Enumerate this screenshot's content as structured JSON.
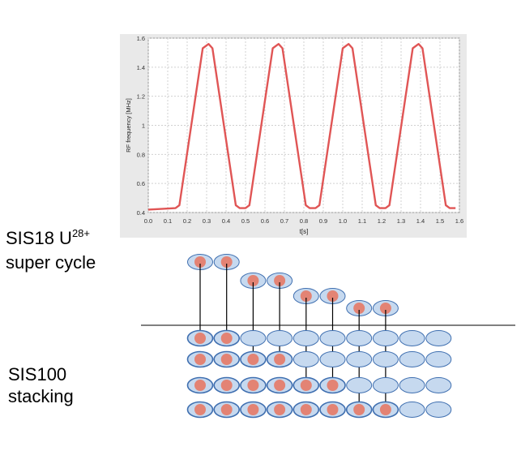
{
  "labels": {
    "sis18": {
      "prefix": "SIS18 U",
      "superscript": "28+",
      "line2": "super cycle"
    },
    "sis100": {
      "line1": "SIS100",
      "line2": "stacking"
    }
  },
  "colors": {
    "curve": "#e05555",
    "plot_bg": "#ffffff",
    "panel_bg": "#e9e9e9",
    "grid": "#d0d0d0",
    "bucket_fill": "#c6d9ef",
    "bucket_stroke": "#3f6fb0",
    "bunch_fill": "#e38374",
    "arrow": "#000000"
  },
  "chart_data": {
    "type": "line",
    "title": "",
    "xlabel": "t[s]",
    "ylabel": "RF frequency [MHz]",
    "xlim": [
      0,
      1.6
    ],
    "ylim": [
      0.4,
      1.6
    ],
    "xticks": [
      0.0,
      0.1,
      0.2,
      0.3,
      0.4,
      0.5,
      0.6,
      0.7,
      0.8,
      0.9,
      1.0,
      1.1,
      1.2,
      1.3,
      1.4,
      1.5,
      1.6
    ],
    "yticks": [
      0.4,
      0.6,
      0.8,
      1.0,
      1.2,
      1.4,
      1.6
    ],
    "xtick_labels": [
      "0.0",
      "0.1",
      "0.2",
      "0.3",
      "0.4",
      "0.5",
      "0.6",
      "0.7",
      "0.8",
      "0.9",
      "1.0",
      "1.1",
      "1.2",
      "1.3",
      "1.4",
      "1.5",
      "1.6"
    ],
    "ytick_labels": [
      "0.4",
      "0.6",
      "0.8",
      "1",
      "1.2",
      "1.4",
      "1.6"
    ],
    "grid": true,
    "series": [
      {
        "x": [
          0.0,
          0.14,
          0.16,
          0.28,
          0.31,
          0.33,
          0.45,
          0.47,
          0.5,
          0.52,
          0.64,
          0.67,
          0.69,
          0.81,
          0.83,
          0.86,
          0.88,
          1.0,
          1.03,
          1.05,
          1.17,
          1.19,
          1.22,
          1.24,
          1.36,
          1.39,
          1.41,
          1.53,
          1.55,
          1.58
        ],
        "y": [
          0.42,
          0.43,
          0.45,
          1.53,
          1.56,
          1.53,
          0.45,
          0.43,
          0.43,
          0.45,
          1.53,
          1.56,
          1.53,
          0.45,
          0.43,
          0.43,
          0.45,
          1.53,
          1.56,
          1.53,
          0.45,
          0.43,
          0.43,
          0.45,
          1.53,
          1.56,
          1.53,
          0.45,
          0.43,
          0.43
        ]
      }
    ]
  },
  "stacking": {
    "bucket_count": 10,
    "row_count": 4,
    "stage_count": 4,
    "filled_per_row": [
      2,
      4,
      6,
      8
    ]
  }
}
